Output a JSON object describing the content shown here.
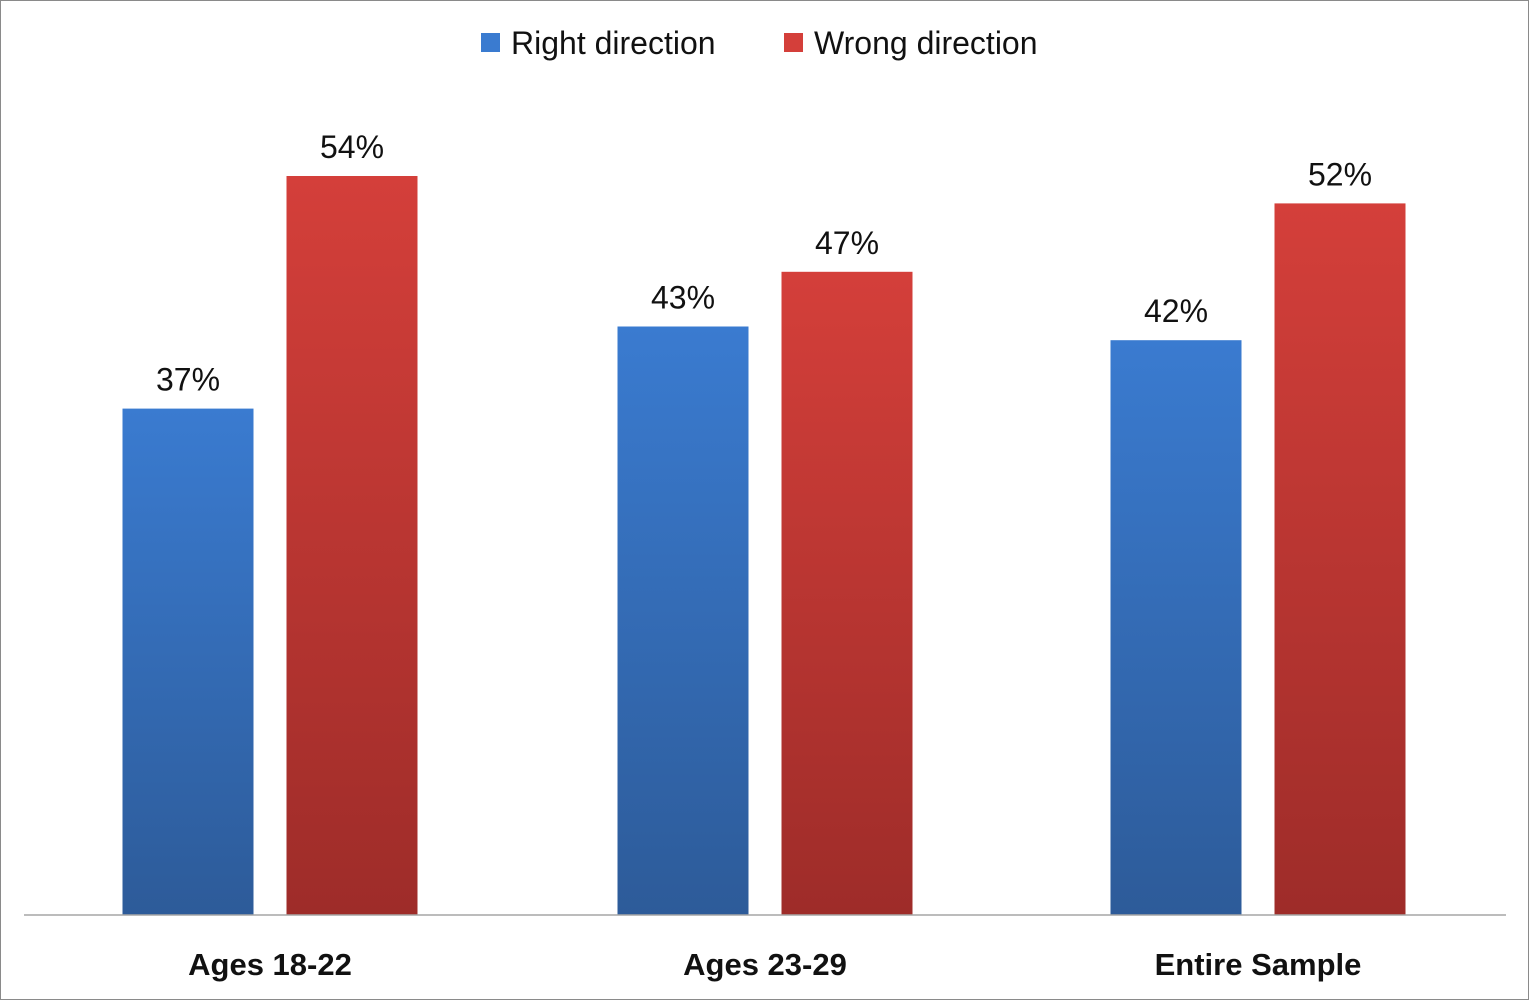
{
  "chart_data": {
    "type": "bar",
    "categories": [
      "Ages 18-22",
      "Ages 23-29",
      "Entire Sample"
    ],
    "series": [
      {
        "name": "Right direction",
        "values": [
          37,
          43,
          42
        ],
        "labels": [
          "37%",
          "43%",
          "42%"
        ],
        "color": "#3A7BD0",
        "color_dark": "#2D5B99"
      },
      {
        "name": "Wrong direction",
        "values": [
          54,
          47,
          52
        ],
        "labels": [
          "54%",
          "47%",
          "52%"
        ],
        "color": "#D43F3A",
        "color_dark": "#9E2C29"
      }
    ],
    "ylim": [
      0,
      60
    ],
    "grid": false,
    "legend_position": "top"
  }
}
